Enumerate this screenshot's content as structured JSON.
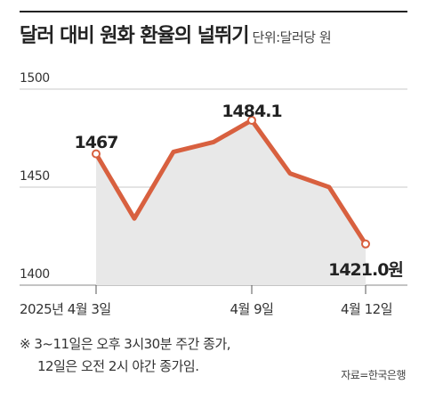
{
  "title": "달러 대비 원화 환율의 널뛰기",
  "unit": "단위:달러당 원",
  "chart_data": {
    "type": "line",
    "x": [
      "2025-04-03",
      "2025-04-04",
      "2025-04-07",
      "2025-04-08",
      "2025-04-09",
      "2025-04-10",
      "2025-04-11",
      "2025-04-12"
    ],
    "values": [
      1467,
      1434,
      1468,
      1473,
      1484.1,
      1457,
      1450,
      1421.0
    ],
    "ylim": [
      1400,
      1500
    ],
    "yticks": [
      1400,
      1450,
      1500
    ],
    "xtick_labels": [
      "2025년 4월 3일",
      "4월 9일",
      "4월 12일"
    ],
    "xtick_index": [
      0,
      4,
      7
    ],
    "grid": true,
    "line_color": "#D8603F",
    "area_color": "#E8E8E8",
    "annotations": [
      {
        "index": 0,
        "label": "1467"
      },
      {
        "index": 4,
        "label": "1484.1"
      },
      {
        "index": 7,
        "label": "1421.0원"
      }
    ]
  },
  "note": {
    "line1": "※ 3~11일은 오후 3시30분 주간 종가,",
    "line2": "12일은 오전 2시 야간 종가임."
  },
  "source": "자료=한국은행"
}
